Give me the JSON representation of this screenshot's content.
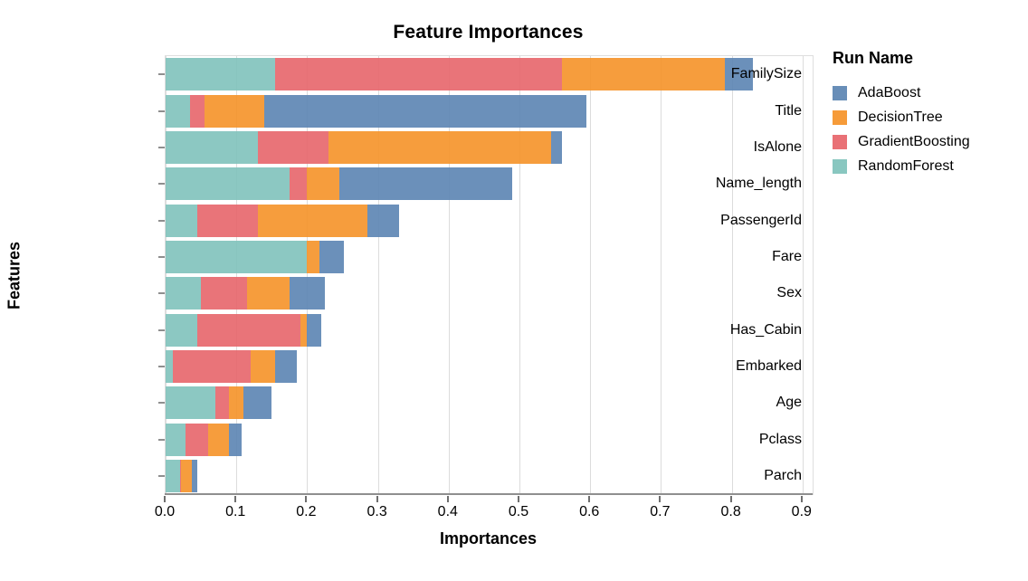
{
  "title": "Feature Importances",
  "legend": {
    "title": "Run Name",
    "items": [
      {
        "label": "AdaBoost",
        "color": "#5b84b2"
      },
      {
        "label": "DecisionTree",
        "color": "#f59228"
      },
      {
        "label": "GradientBoosting",
        "color": "#e7656a"
      },
      {
        "label": "RandomForest",
        "color": "#7fc2bb"
      }
    ]
  },
  "chart_data": {
    "type": "bar",
    "orientation": "horizontal",
    "stacked": true,
    "title": "Feature Importances",
    "xlabel": "Importances",
    "ylabel": "Features",
    "xlim": [
      0.0,
      0.9
    ],
    "grid": true,
    "legend_position": "right",
    "legend_title": "Run Name",
    "x_ticks": [
      "0.0",
      "0.1",
      "0.2",
      "0.3",
      "0.4",
      "0.5",
      "0.6",
      "0.7",
      "0.8",
      "0.9"
    ],
    "categories": [
      "FamilySize",
      "Title",
      "IsAlone",
      "Name_length",
      "PassengerId",
      "Fare",
      "Sex",
      "Has_Cabin",
      "Embarked",
      "Age",
      "Pclass",
      "Parch"
    ],
    "series": [
      {
        "name": "AdaBoost",
        "color": "#5b84b2",
        "values": [
          0.04,
          0.455,
          0.015,
          0.245,
          0.045,
          0.034,
          0.05,
          0.02,
          0.03,
          0.04,
          0.018,
          0.008
        ]
      },
      {
        "name": "DecisionTree",
        "color": "#f59228",
        "values": [
          0.23,
          0.085,
          0.315,
          0.045,
          0.155,
          0.018,
          0.06,
          0.01,
          0.035,
          0.02,
          0.03,
          0.015
        ]
      },
      {
        "name": "GradientBoosting",
        "color": "#e7656a",
        "values": [
          0.405,
          0.02,
          0.1,
          0.025,
          0.085,
          0.0,
          0.065,
          0.145,
          0.11,
          0.02,
          0.032,
          0.002
        ]
      },
      {
        "name": "RandomForest",
        "color": "#7fc2bb",
        "values": [
          0.155,
          0.035,
          0.13,
          0.175,
          0.045,
          0.2,
          0.05,
          0.045,
          0.01,
          0.07,
          0.028,
          0.02
        ]
      }
    ],
    "stack_order": [
      "RandomForest",
      "GradientBoosting",
      "DecisionTree",
      "AdaBoost"
    ]
  },
  "style_colors": {
    "gridline": "#dcdcdc",
    "frame": "#dedede",
    "axis_domain": "#8f8f8f",
    "text": "#000000"
  }
}
